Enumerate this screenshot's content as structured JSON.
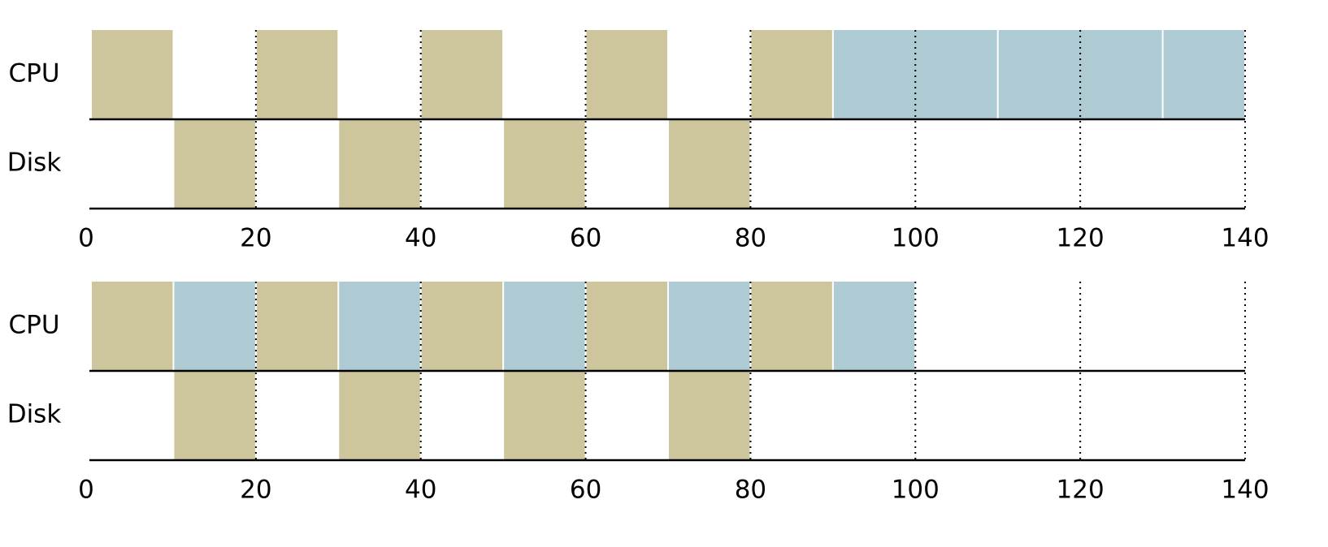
{
  "chart_data": [
    {
      "type": "gantt",
      "rows": [
        {
          "label": "CPU",
          "tasks": [
            {
              "start": 0,
              "end": 10,
              "color": "#cdc69d"
            },
            {
              "start": 20,
              "end": 30,
              "color": "#cdc69d"
            },
            {
              "start": 40,
              "end": 50,
              "color": "#cdc69d"
            },
            {
              "start": 60,
              "end": 70,
              "color": "#cdc69d"
            },
            {
              "start": 80,
              "end": 90,
              "color": "#cdc69d"
            },
            {
              "start": 90,
              "end": 110,
              "color": "#aecbd4"
            },
            {
              "start": 110,
              "end": 130,
              "color": "#aecbd4"
            },
            {
              "start": 130,
              "end": 140,
              "color": "#aecbd4"
            }
          ]
        },
        {
          "label": "Disk",
          "tasks": [
            {
              "start": 10,
              "end": 20,
              "color": "#cdc69d"
            },
            {
              "start": 30,
              "end": 40,
              "color": "#cdc69d"
            },
            {
              "start": 50,
              "end": 60,
              "color": "#cdc69d"
            },
            {
              "start": 70,
              "end": 80,
              "color": "#cdc69d"
            }
          ]
        }
      ],
      "xlim": [
        0,
        140
      ],
      "xticks": [
        0,
        20,
        40,
        60,
        80,
        100,
        120,
        140
      ],
      "grid": true
    },
    {
      "type": "gantt",
      "rows": [
        {
          "label": "CPU",
          "tasks": [
            {
              "start": 0,
              "end": 10,
              "color": "#cdc69d"
            },
            {
              "start": 10,
              "end": 20,
              "color": "#aecbd4"
            },
            {
              "start": 20,
              "end": 30,
              "color": "#cdc69d"
            },
            {
              "start": 30,
              "end": 40,
              "color": "#aecbd4"
            },
            {
              "start": 40,
              "end": 50,
              "color": "#cdc69d"
            },
            {
              "start": 50,
              "end": 60,
              "color": "#aecbd4"
            },
            {
              "start": 60,
              "end": 70,
              "color": "#cdc69d"
            },
            {
              "start": 70,
              "end": 80,
              "color": "#aecbd4"
            },
            {
              "start": 80,
              "end": 90,
              "color": "#cdc69d"
            },
            {
              "start": 90,
              "end": 100,
              "color": "#aecbd4"
            }
          ]
        },
        {
          "label": "Disk",
          "tasks": [
            {
              "start": 10,
              "end": 20,
              "color": "#cdc69d"
            },
            {
              "start": 30,
              "end": 40,
              "color": "#cdc69d"
            },
            {
              "start": 50,
              "end": 60,
              "color": "#cdc69d"
            },
            {
              "start": 70,
              "end": 80,
              "color": "#cdc69d"
            }
          ]
        }
      ],
      "xlim": [
        0,
        140
      ],
      "xticks": [
        0,
        20,
        40,
        60,
        80,
        100,
        120,
        140
      ],
      "grid": true
    }
  ]
}
